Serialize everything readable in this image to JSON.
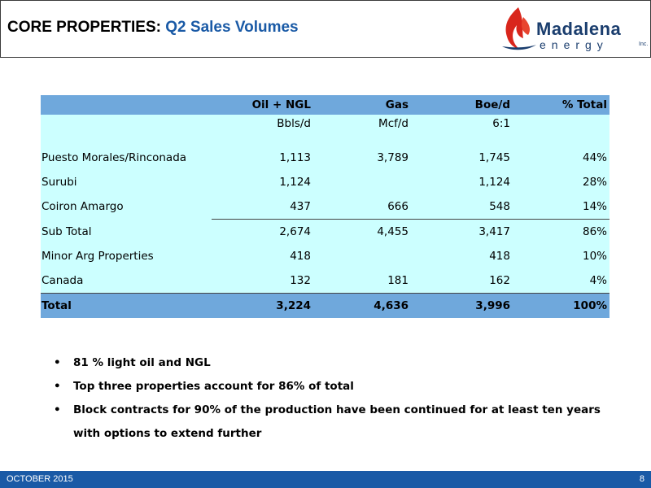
{
  "header": {
    "title_prefix": "CORE PROPERTIES:",
    "title_accent": "Q2 Sales Volumes"
  },
  "logo": {
    "word": "Madalena",
    "sub": "energy",
    "inc": "Inc."
  },
  "table": {
    "columns": [
      "",
      "Oil + NGL",
      "Gas",
      "Boe/d",
      "% Total"
    ],
    "units": [
      "",
      "Bbls/d",
      "Mcf/d",
      "6:1",
      ""
    ],
    "rows": [
      [
        "Puesto Morales/Rinconada",
        "1,113",
        "3,789",
        "1,745",
        "44%"
      ],
      [
        "Surubi",
        "1,124",
        "",
        "1,124",
        "28%"
      ],
      [
        "Coiron Amargo",
        "437",
        "666",
        "548",
        "14%"
      ],
      [
        "Sub Total",
        "2,674",
        "4,455",
        "3,417",
        "86%"
      ],
      [
        "Minor Arg Properties",
        "418",
        "",
        "418",
        "10%"
      ],
      [
        "Canada",
        "132",
        "181",
        "162",
        "4%"
      ]
    ],
    "total": [
      "Total",
      "3,224",
      "4,636",
      "3,996",
      "100%"
    ]
  },
  "bullets": {
    "b1": "81 % light oil and NGL",
    "b2": "Top three properties account for 86% of total",
    "b3a": "Block contracts for 90% of the production have been continued for at least ten years",
    "b3b": "with options to extend further"
  },
  "footer": {
    "date": "OCTOBER 2015",
    "page": "8"
  },
  "colors": {
    "accent_blue": "#1a5aa6",
    "table_header_blue": "#6fa8dc",
    "table_body_cyan": "#ccffff",
    "logo_red": "#d9261c",
    "logo_navy": "#1b3e6e"
  }
}
